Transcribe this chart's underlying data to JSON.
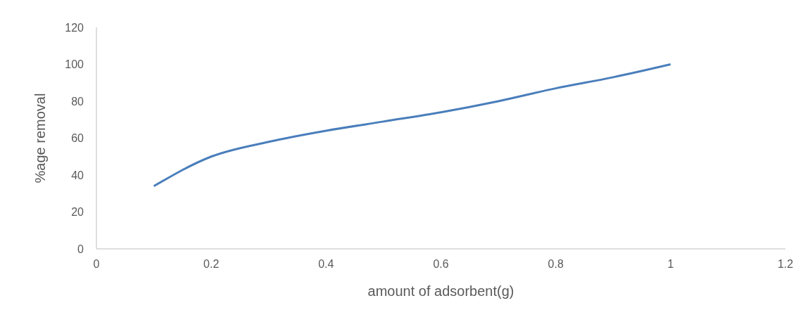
{
  "chart_data": {
    "type": "line",
    "xlabel": "amount of adsorbent(g)",
    "ylabel": "%age removal",
    "x": [
      0.1,
      0.2,
      0.3,
      0.4,
      0.5,
      0.6,
      0.7,
      0.8,
      0.9,
      1.0
    ],
    "series": [
      {
        "color": "#4a7ebb",
        "values": [
          34,
          50,
          58,
          64,
          69,
          74,
          80,
          87,
          93,
          100
        ]
      }
    ],
    "xlim": [
      0,
      1.2
    ],
    "xticks": [
      0,
      0.2,
      0.4,
      0.6,
      0.8,
      1,
      1.2
    ],
    "ylim": [
      0,
      120
    ],
    "yticks": [
      0,
      20,
      40,
      60,
      80,
      100,
      120
    ],
    "grid": false,
    "legend": false,
    "marker": "none",
    "line_style": "solid"
  }
}
